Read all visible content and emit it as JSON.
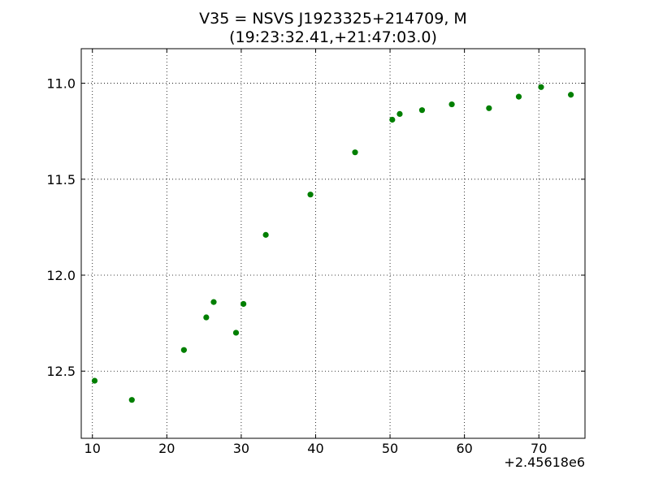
{
  "chart_data": {
    "type": "scatter",
    "title": [
      "V35 = NSVS J1923325+214709, M",
      "(19:23:32.41,+21:47:03.0)"
    ],
    "xlabel": "",
    "ylabel": "",
    "x_offset_label": "+2.45618e6",
    "xlim": [
      8.5,
      76.2
    ],
    "ylim": [
      10.82,
      12.85
    ],
    "y_inverted": true,
    "grid": true,
    "xticks": [
      10,
      20,
      30,
      40,
      50,
      60,
      70
    ],
    "yticks": [
      11.0,
      11.5,
      12.0,
      12.5
    ],
    "ytick_labels": [
      "11.0",
      "11.5",
      "12.0",
      "12.5"
    ],
    "series": [
      {
        "color": "#007f00",
        "x": [
          10.3,
          15.3,
          22.3,
          25.3,
          26.3,
          29.3,
          30.3,
          33.3,
          39.3,
          45.3,
          50.3,
          51.3,
          54.3,
          58.3,
          63.3,
          67.3,
          70.3,
          74.3
        ],
        "y": [
          12.55,
          12.65,
          12.39,
          12.22,
          12.14,
          12.3,
          12.15,
          11.79,
          11.58,
          11.36,
          11.19,
          11.16,
          11.14,
          11.11,
          11.13,
          11.07,
          11.02,
          11.06
        ]
      }
    ]
  }
}
